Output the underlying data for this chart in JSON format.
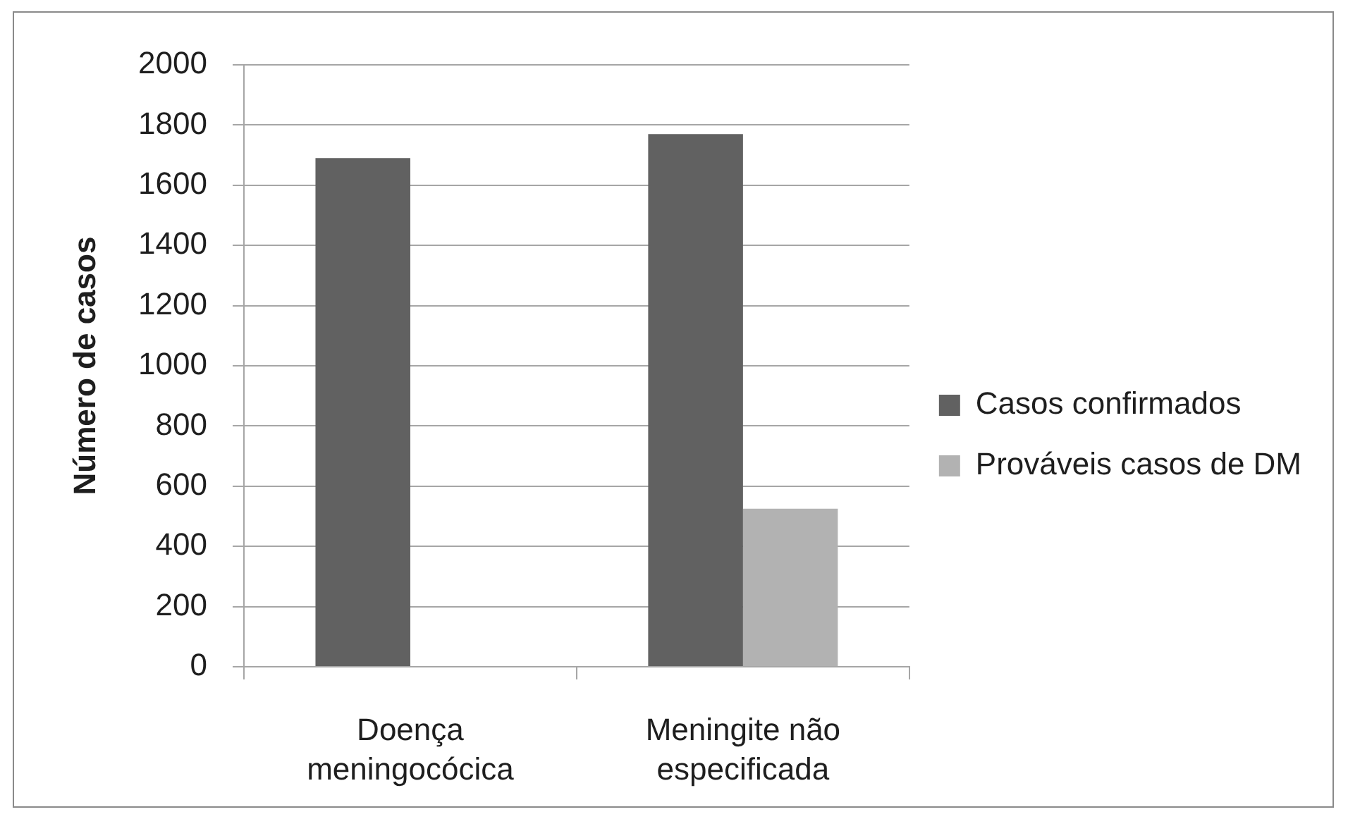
{
  "chart_data": {
    "type": "bar",
    "ylabel": "Número de casos",
    "categories": [
      "Doença meningocócica",
      "Meningite não especificada"
    ],
    "series": [
      {
        "name": "Casos confirmados",
        "color": "#616161",
        "values": [
          1690,
          1770
        ]
      },
      {
        "name": "Prováveis casos de DM",
        "color": "#b2b2b2",
        "values": [
          null,
          525
        ]
      }
    ],
    "ylim": [
      0,
      2000
    ],
    "yticks": [
      0,
      200,
      400,
      600,
      800,
      1000,
      1200,
      1400,
      1600,
      1800,
      2000
    ],
    "grid": "y",
    "legend": "right"
  }
}
